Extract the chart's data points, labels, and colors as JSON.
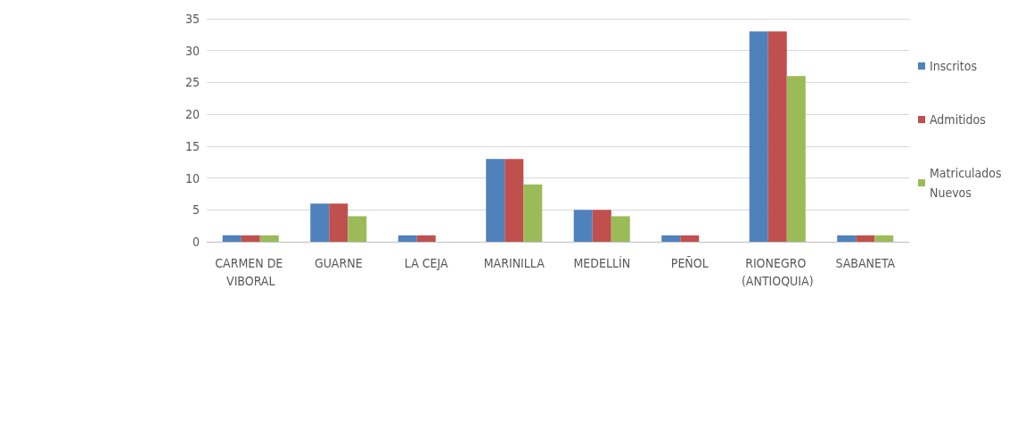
{
  "chart_data": {
    "type": "bar",
    "categories": [
      "CARMEN DE VIBORAL",
      "GUARNE",
      "LA CEJA",
      "MARINILLA",
      "MEDELLÍN",
      "PEÑOL",
      "RIONEGRO (ANTIOQUIA)",
      "SABANETA"
    ],
    "series": [
      {
        "name": "Inscritos",
        "color": "#4f81bd",
        "values": [
          1,
          6,
          1,
          13,
          5,
          1,
          33,
          1
        ]
      },
      {
        "name": "Admitidos",
        "color": "#c0504d",
        "values": [
          1,
          6,
          1,
          13,
          5,
          1,
          33,
          1
        ]
      },
      {
        "name": "Matriculados Nuevos",
        "color": "#9bbb59",
        "values": [
          1,
          4,
          0,
          9,
          4,
          0,
          26,
          1
        ]
      }
    ],
    "ylim": [
      0,
      35
    ],
    "yticks": [
      0,
      5,
      10,
      15,
      20,
      25,
      30,
      35
    ],
    "grid": "y",
    "legend": "right"
  }
}
